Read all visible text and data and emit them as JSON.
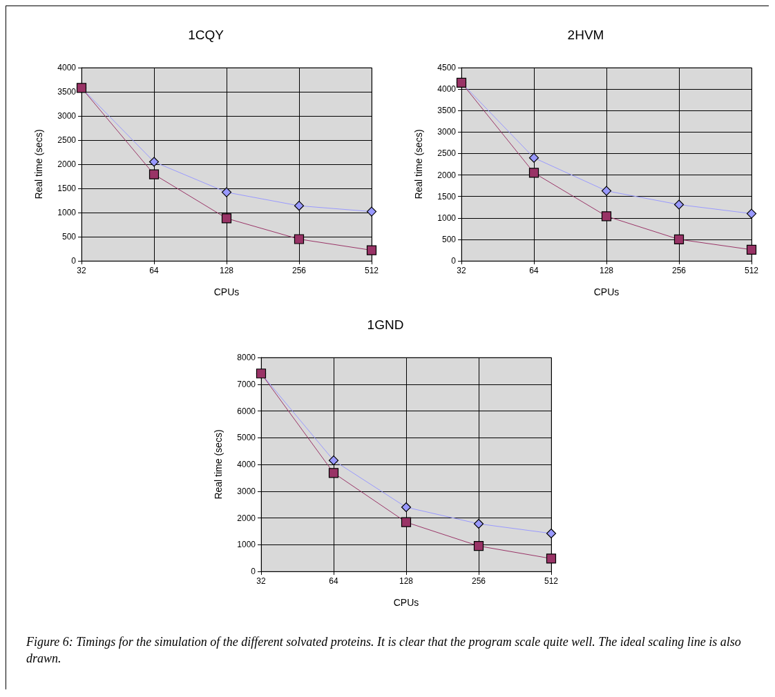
{
  "chart_data": [
    {
      "type": "line",
      "title": "1CQY",
      "xlabel": "CPUs",
      "ylabel": "Real time (secs)",
      "categories": [
        "32",
        "64",
        "128",
        "256",
        "512"
      ],
      "ylim": [
        0,
        4000
      ],
      "yticks": [
        0,
        500,
        1000,
        1500,
        2000,
        2500,
        3000,
        3500,
        4000
      ],
      "grid": true,
      "series": [
        {
          "color": "#9999ff",
          "marker": "diamond",
          "values": [
            3580,
            2050,
            1420,
            1140,
            1020
          ]
        },
        {
          "color": "#993366",
          "marker": "square",
          "values": [
            3580,
            1790,
            880,
            450,
            220
          ]
        }
      ]
    },
    {
      "type": "line",
      "title": "2HVM",
      "xlabel": "CPUs",
      "ylabel": "Real time (secs)",
      "categories": [
        "32",
        "64",
        "128",
        "256",
        "512"
      ],
      "ylim": [
        0,
        4500
      ],
      "yticks": [
        0,
        500,
        1000,
        1500,
        2000,
        2500,
        3000,
        3500,
        4000,
        4500
      ],
      "grid": true,
      "series": [
        {
          "color": "#9999ff",
          "marker": "diamond",
          "values": [
            4150,
            2400,
            1630,
            1310,
            1100
          ]
        },
        {
          "color": "#993366",
          "marker": "square",
          "values": [
            4150,
            2050,
            1040,
            500,
            260
          ]
        }
      ]
    },
    {
      "type": "line",
      "title": "1GND",
      "xlabel": "CPUs",
      "ylabel": "Real time (secs)",
      "categories": [
        "32",
        "64",
        "128",
        "256",
        "512"
      ],
      "ylim": [
        0,
        8000
      ],
      "yticks": [
        0,
        1000,
        2000,
        3000,
        4000,
        5000,
        6000,
        7000,
        8000
      ],
      "grid": true,
      "annotations": [
        "Figure 6: Timings for the simulation of the different solvated proteins. It is clear that the program scale quite well. The ideal scaling line is also drawn."
      ],
      "series": [
        {
          "color": "#9999ff",
          "marker": "diamond",
          "values": [
            7400,
            4150,
            2400,
            1780,
            1420
          ]
        },
        {
          "color": "#993366",
          "marker": "square",
          "values": [
            7400,
            3680,
            1840,
            950,
            480
          ]
        }
      ]
    }
  ]
}
